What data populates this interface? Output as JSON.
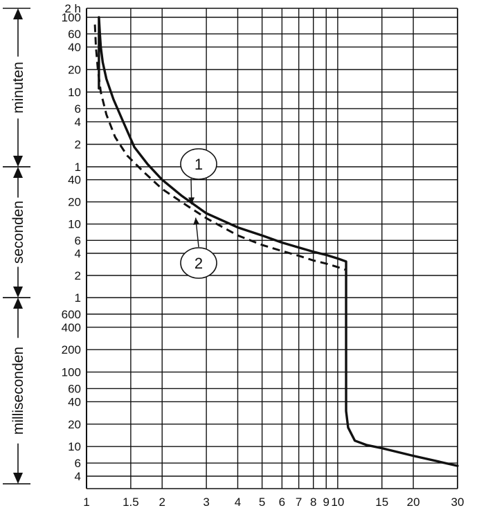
{
  "chart_data": {
    "type": "line",
    "x_scale": "log",
    "y_scale": "log",
    "grid": true,
    "xlim": [
      1,
      30
    ],
    "x_ticks": [
      {
        "value": 1,
        "label": "1"
      },
      {
        "value": 1.5,
        "label": "1.5"
      },
      {
        "value": 2,
        "label": "2"
      },
      {
        "value": 3,
        "label": "3"
      },
      {
        "value": 4,
        "label": "4"
      },
      {
        "value": 5,
        "label": "5"
      },
      {
        "value": 6,
        "label": "6"
      },
      {
        "value": 7,
        "label": "7"
      },
      {
        "value": 8,
        "label": "8"
      },
      {
        "value": 9,
        "label": "9"
      },
      {
        "value": 10,
        "label": "10"
      },
      {
        "value": 15,
        "label": "15"
      },
      {
        "value": 20,
        "label": "20"
      },
      {
        "value": 30,
        "label": "30"
      }
    ],
    "y_ticks": [
      {
        "seconds": 7200,
        "label": "2 h"
      },
      {
        "seconds": 6000,
        "label": "100"
      },
      {
        "seconds": 3600,
        "label": "60"
      },
      {
        "seconds": 2400,
        "label": "40"
      },
      {
        "seconds": 1200,
        "label": "20"
      },
      {
        "seconds": 600,
        "label": "10"
      },
      {
        "seconds": 360,
        "label": "6"
      },
      {
        "seconds": 240,
        "label": "4"
      },
      {
        "seconds": 120,
        "label": "2"
      },
      {
        "seconds": 60,
        "label": "1"
      },
      {
        "seconds": 40,
        "label": "40"
      },
      {
        "seconds": 20,
        "label": "20"
      },
      {
        "seconds": 10,
        "label": "10"
      },
      {
        "seconds": 6,
        "label": "6"
      },
      {
        "seconds": 4,
        "label": "4"
      },
      {
        "seconds": 2,
        "label": "2"
      },
      {
        "seconds": 1,
        "label": "1"
      },
      {
        "seconds": 0.6,
        "label": "600"
      },
      {
        "seconds": 0.4,
        "label": "400"
      },
      {
        "seconds": 0.2,
        "label": "200"
      },
      {
        "seconds": 0.1,
        "label": "100"
      },
      {
        "seconds": 0.06,
        "label": "60"
      },
      {
        "seconds": 0.04,
        "label": "40"
      },
      {
        "seconds": 0.02,
        "label": "20"
      },
      {
        "seconds": 0.01,
        "label": "10"
      },
      {
        "seconds": 0.006,
        "label": "6"
      },
      {
        "seconds": 0.004,
        "label": "4"
      }
    ],
    "unit_sections": [
      {
        "label": "minuten",
        "range_seconds": [
          7200,
          60
        ]
      },
      {
        "label": "seconden",
        "range_seconds": [
          60,
          1
        ]
      },
      {
        "label": "milliseconden",
        "range_seconds": [
          1,
          0.003
        ]
      }
    ],
    "series": [
      {
        "marker": "1",
        "style": "solid",
        "points": [
          [
            1.12,
            9000
          ],
          [
            1.12,
            6000
          ],
          [
            1.13,
            3600
          ],
          [
            1.14,
            2400
          ],
          [
            1.16,
            1500
          ],
          [
            1.2,
            900
          ],
          [
            1.28,
            480
          ],
          [
            1.4,
            240
          ],
          [
            1.55,
            110
          ],
          [
            1.75,
            65
          ],
          [
            2.0,
            40
          ],
          [
            2.4,
            24
          ],
          [
            3.0,
            14
          ],
          [
            4.0,
            9
          ],
          [
            5.0,
            7
          ],
          [
            6.0,
            5.6
          ],
          [
            7.0,
            4.8
          ],
          [
            8.0,
            4.2
          ],
          [
            9.0,
            3.8
          ],
          [
            10.0,
            3.4
          ],
          [
            10.8,
            3.1
          ],
          [
            10.8,
            0.5
          ],
          [
            10.8,
            0.06
          ],
          [
            10.8,
            0.03
          ],
          [
            11.0,
            0.018
          ],
          [
            11.7,
            0.012
          ],
          [
            13.0,
            0.0105
          ],
          [
            15.0,
            0.0095
          ],
          [
            20.0,
            0.0075
          ],
          [
            30.0,
            0.0055
          ]
        ]
      },
      {
        "marker": "2",
        "style": "dashed",
        "points": [
          [
            1.08,
            4800
          ],
          [
            1.09,
            2400
          ],
          [
            1.11,
            1200
          ],
          [
            1.14,
            600
          ],
          [
            1.2,
            300
          ],
          [
            1.3,
            150
          ],
          [
            1.45,
            85
          ],
          [
            1.7,
            50
          ],
          [
            2.0,
            30
          ],
          [
            2.5,
            18
          ],
          [
            3.0,
            12
          ],
          [
            4.0,
            7
          ],
          [
            5.0,
            5.2
          ],
          [
            6.0,
            4.3
          ],
          [
            7.0,
            3.7
          ],
          [
            8.0,
            3.2
          ],
          [
            9.0,
            2.9
          ],
          [
            10.0,
            2.6
          ],
          [
            10.7,
            2.4
          ]
        ]
      }
    ],
    "annotations": [
      {
        "label": "1",
        "points_to_series": "1"
      },
      {
        "label": "2",
        "points_to_series": "2"
      }
    ]
  }
}
